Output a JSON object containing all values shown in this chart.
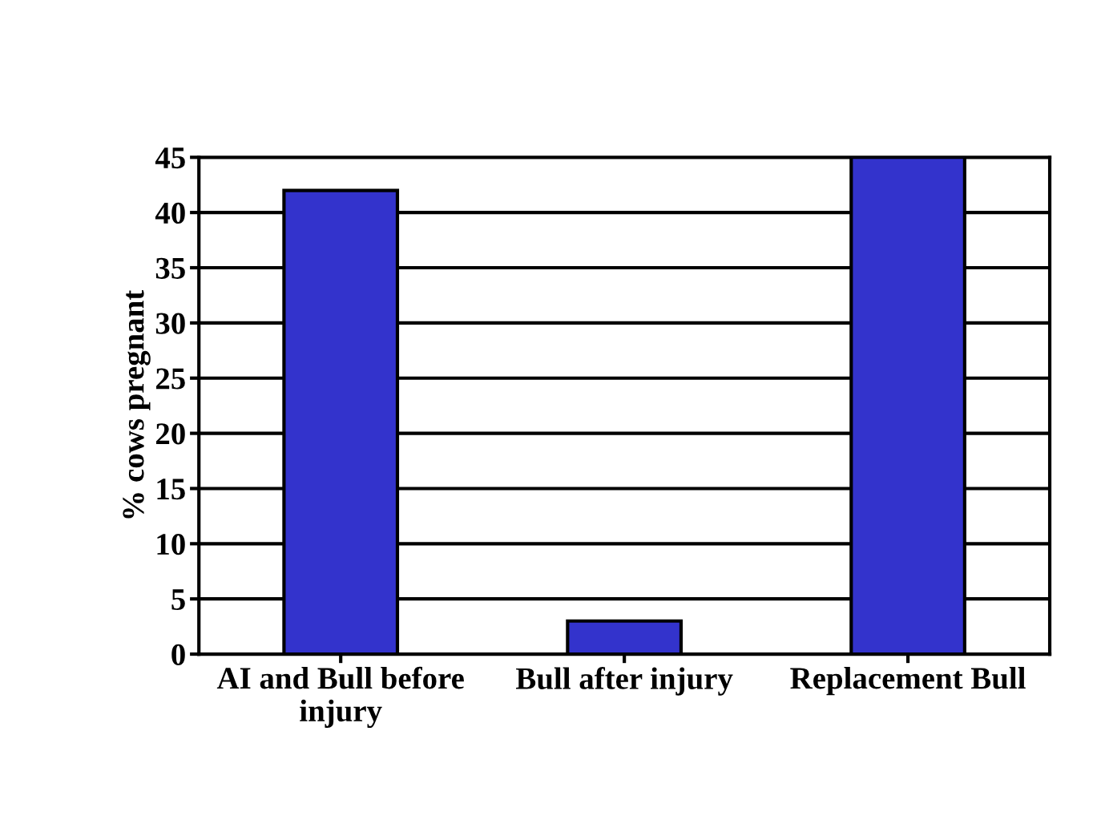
{
  "chart_data": {
    "type": "bar",
    "ylabel": "% cows pregnant",
    "categories": [
      "AI and Bull before\ninjury",
      "Bull after injury",
      "Replacement Bull"
    ],
    "values": [
      42,
      3,
      45
    ],
    "color": "#3333cc",
    "ylim": [
      0,
      45
    ],
    "yticks": [
      0,
      5,
      10,
      15,
      20,
      25,
      30,
      35,
      40,
      45
    ],
    "grid": "y",
    "legend": false
  }
}
